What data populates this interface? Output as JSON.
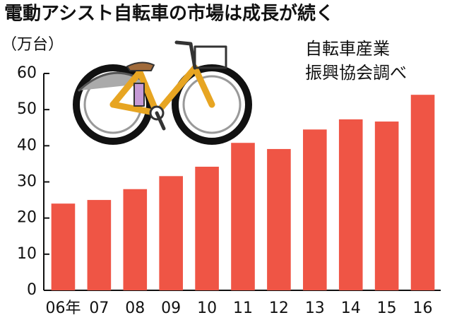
{
  "chart_data": {
    "type": "bar",
    "title": "電動アシスト自転車の市場は成長が続く",
    "unit_label": "（万台）",
    "source": [
      "自転車産業",
      "振興協会調べ"
    ],
    "categories": [
      "06年",
      "07",
      "08",
      "09",
      "10",
      "11",
      "12",
      "13",
      "14",
      "15",
      "16"
    ],
    "values": [
      24,
      25,
      28,
      31.6,
      34.2,
      40.8,
      39.1,
      44.5,
      47.3,
      46.7,
      54.1
    ],
    "color": "#ef5545",
    "ylim": [
      0,
      60
    ],
    "yticks": [
      0,
      10,
      20,
      30,
      40,
      50,
      60
    ],
    "grid": false
  }
}
